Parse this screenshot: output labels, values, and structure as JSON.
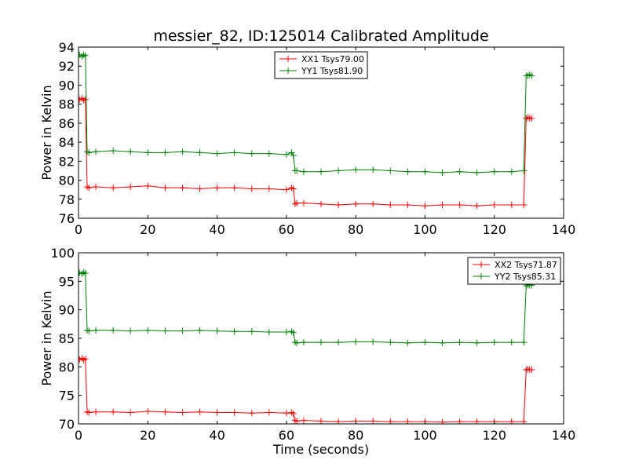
{
  "chart_data": [
    {
      "type": "line",
      "title": "messier_82, ID:125014 Calibrated Amplitude",
      "xlabel": "",
      "ylabel": "Power in Kelvin",
      "xlim": [
        0,
        140
      ],
      "ylim": [
        76,
        94
      ],
      "xticks": [
        0,
        20,
        40,
        60,
        80,
        100,
        120,
        140
      ],
      "yticks": [
        76,
        78,
        80,
        82,
        84,
        86,
        88,
        90,
        92,
        94
      ],
      "grid": false,
      "legend_position": "top-center",
      "series": [
        {
          "name": "XX1 Tsys79.00",
          "color": "#ff0000",
          "x": [
            0.3,
            1,
            1.5,
            2,
            2.5,
            3,
            5,
            10,
            15,
            20,
            25,
            30,
            35,
            40,
            45,
            50,
            55,
            60,
            61.5,
            62,
            62.5,
            63,
            65,
            70,
            75,
            80,
            85,
            90,
            95,
            100,
            105,
            110,
            115,
            120,
            125,
            128.5,
            129.2,
            129.7,
            130.2,
            130.8
          ],
          "y": [
            88.5,
            88.6,
            88.4,
            88.5,
            79.3,
            79.2,
            79.3,
            79.2,
            79.3,
            79.4,
            79.2,
            79.2,
            79.1,
            79.2,
            79.2,
            79.1,
            79.1,
            79.0,
            79.2,
            79.1,
            77.5,
            77.6,
            77.6,
            77.5,
            77.4,
            77.5,
            77.5,
            77.4,
            77.4,
            77.3,
            77.4,
            77.4,
            77.3,
            77.4,
            77.4,
            77.4,
            86.5,
            86.6,
            86.5,
            86.5
          ]
        },
        {
          "name": "YY1 Tsys81.90",
          "color": "#008000",
          "x": [
            0.3,
            1,
            1.5,
            2,
            2.5,
            3,
            5,
            10,
            15,
            20,
            25,
            30,
            35,
            40,
            45,
            50,
            55,
            60,
            61.5,
            62,
            62.5,
            63,
            65,
            70,
            75,
            80,
            85,
            90,
            95,
            100,
            105,
            110,
            115,
            120,
            125,
            128.5,
            129.2,
            129.7,
            130.2,
            130.8
          ],
          "y": [
            93.2,
            93.0,
            93.2,
            93.1,
            83.0,
            82.9,
            83.0,
            83.1,
            83.0,
            82.9,
            82.9,
            83.0,
            82.9,
            82.8,
            82.9,
            82.8,
            82.8,
            82.7,
            82.9,
            82.6,
            81.0,
            81.0,
            80.9,
            80.9,
            81.0,
            81.1,
            81.1,
            81.0,
            80.9,
            80.9,
            80.8,
            80.9,
            80.8,
            80.9,
            80.9,
            81.0,
            91.0,
            91.0,
            91.1,
            91.0
          ]
        }
      ]
    },
    {
      "type": "line",
      "title": "",
      "xlabel": "Time (seconds)",
      "ylabel": "Power in Kelvin",
      "xlim": [
        0,
        140
      ],
      "ylim": [
        70,
        100
      ],
      "xticks": [
        0,
        20,
        40,
        60,
        80,
        100,
        120,
        140
      ],
      "yticks": [
        70,
        75,
        80,
        85,
        90,
        95,
        100
      ],
      "grid": false,
      "legend_position": "top-right",
      "series": [
        {
          "name": "XX2 Tsys71.87",
          "color": "#ff0000",
          "x": [
            0.3,
            1,
            1.5,
            2,
            2.5,
            3,
            5,
            10,
            15,
            20,
            25,
            30,
            35,
            40,
            45,
            50,
            55,
            60,
            61.5,
            62,
            62.5,
            63,
            65,
            70,
            75,
            80,
            85,
            90,
            95,
            100,
            105,
            110,
            115,
            120,
            125,
            128.5,
            129.2,
            129.7,
            130.2,
            130.8
          ],
          "y": [
            81.3,
            81.5,
            81.2,
            81.4,
            72.1,
            72.0,
            72.1,
            72.1,
            72.0,
            72.2,
            72.1,
            72.0,
            72.1,
            72.0,
            72.0,
            71.9,
            72.0,
            71.9,
            72.0,
            71.8,
            70.6,
            70.5,
            70.6,
            70.5,
            70.4,
            70.5,
            70.5,
            70.4,
            70.4,
            70.4,
            70.3,
            70.4,
            70.4,
            70.4,
            70.4,
            70.4,
            79.5,
            79.6,
            79.5,
            79.5
          ]
        },
        {
          "name": "YY2 Tsys85.31",
          "color": "#008000",
          "x": [
            0.3,
            1,
            1.5,
            2,
            2.5,
            3,
            5,
            10,
            15,
            20,
            25,
            30,
            35,
            40,
            45,
            50,
            55,
            60,
            61.5,
            62,
            62.5,
            63,
            65,
            70,
            75,
            80,
            85,
            90,
            95,
            100,
            105,
            110,
            115,
            120,
            125,
            128.5,
            129.2,
            129.7,
            130.2,
            130.8
          ],
          "y": [
            96.5,
            96.3,
            96.6,
            96.4,
            86.4,
            86.3,
            86.4,
            86.4,
            86.3,
            86.4,
            86.3,
            86.3,
            86.4,
            86.3,
            86.2,
            86.2,
            86.1,
            86.1,
            86.2,
            86.0,
            84.3,
            84.2,
            84.3,
            84.3,
            84.3,
            84.4,
            84.4,
            84.3,
            84.2,
            84.3,
            84.2,
            84.3,
            84.2,
            84.3,
            84.3,
            84.3,
            94.2,
            94.4,
            94.3,
            94.3
          ]
        }
      ]
    }
  ]
}
